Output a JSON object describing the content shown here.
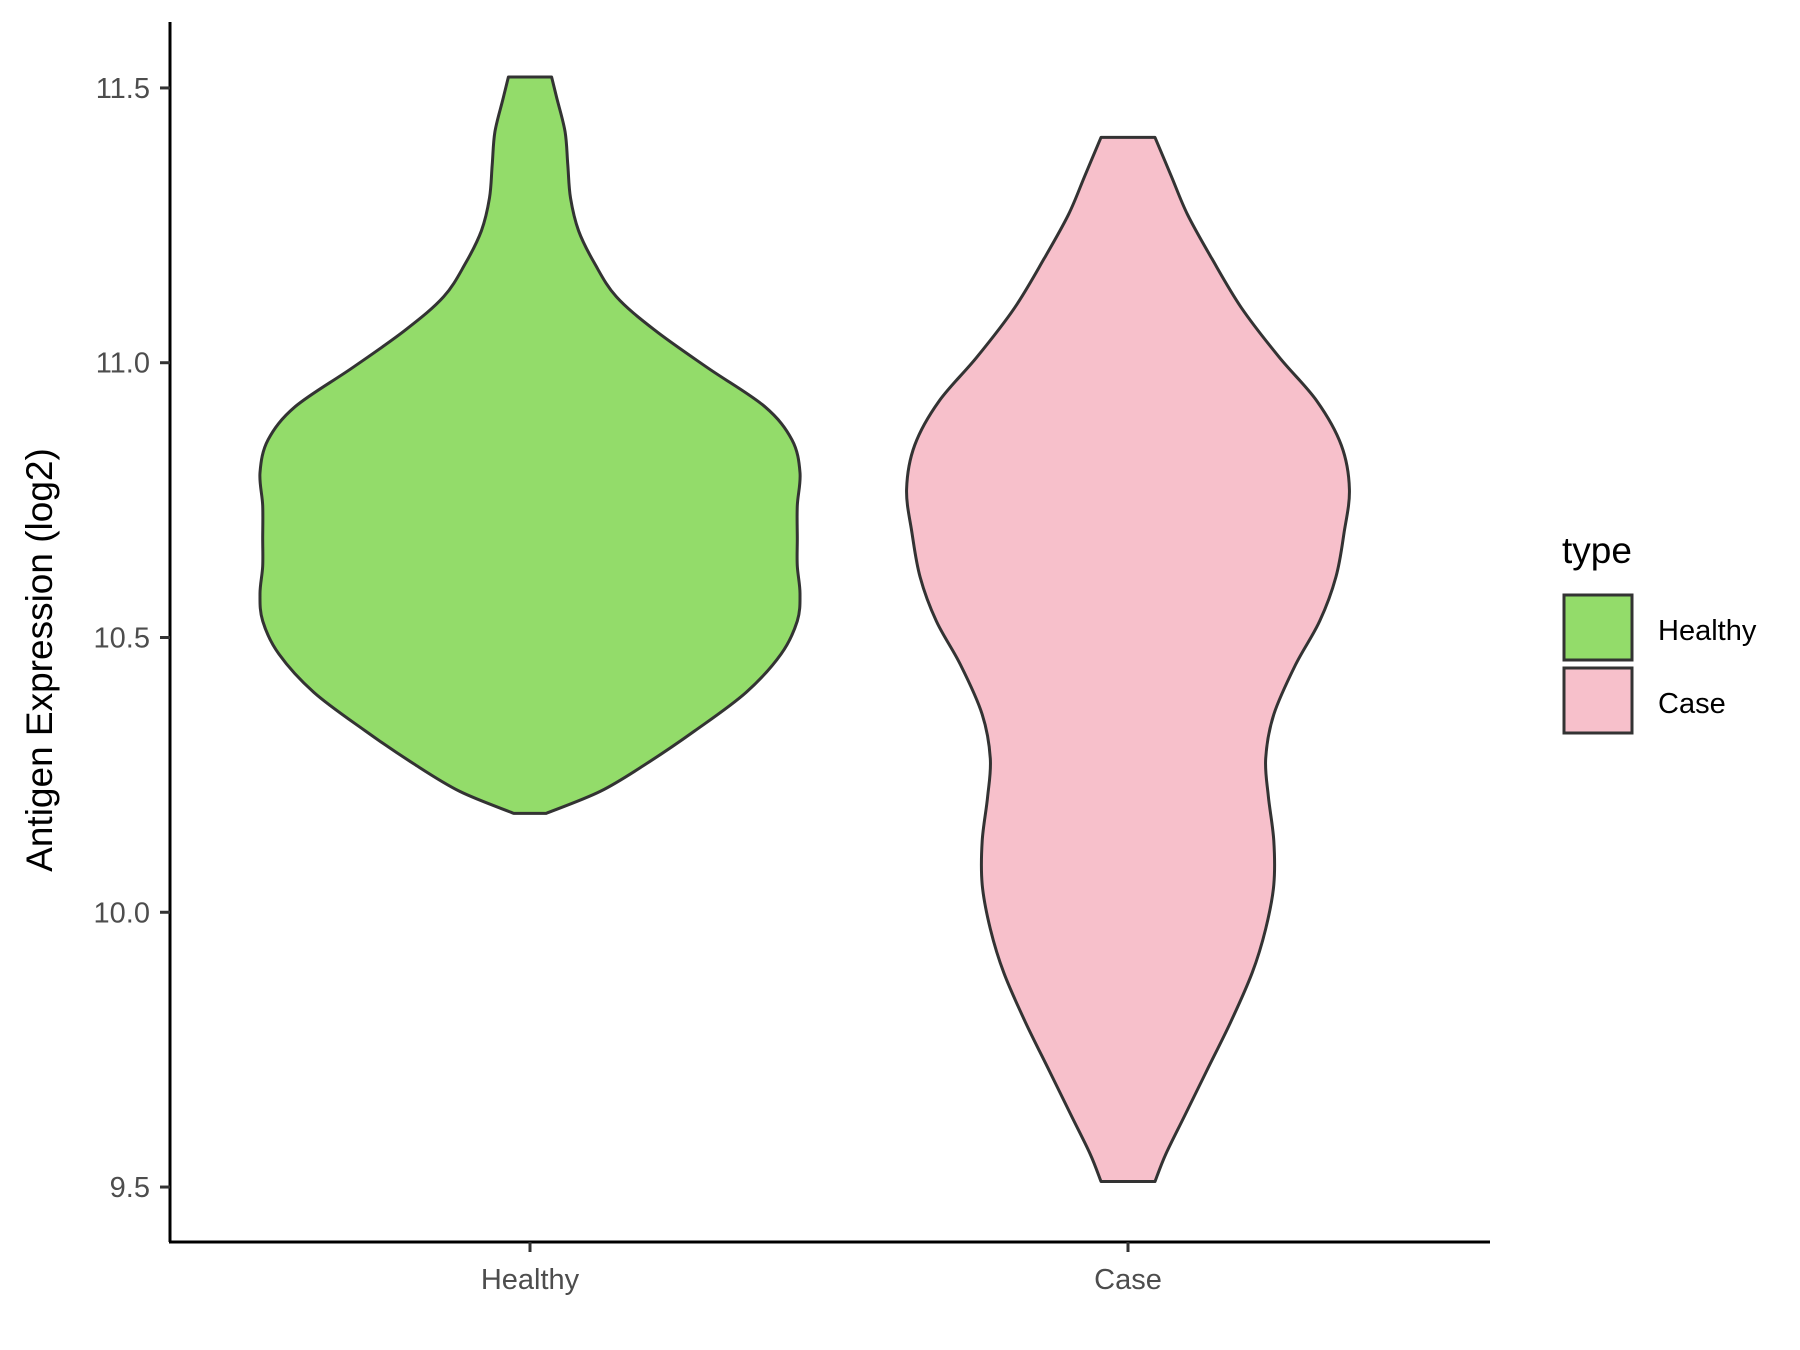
{
  "chart_data": {
    "type": "violin",
    "title": "",
    "xlabel": "",
    "ylabel": "Antigen Expression (log2)",
    "ylim": [
      9.4,
      11.62
    ],
    "yticks": [
      "9.5",
      "10.0",
      "10.5",
      "11.0",
      "11.5"
    ],
    "categories": [
      "Healthy",
      "Case"
    ],
    "legend": {
      "title": "type",
      "position": "right",
      "items": [
        {
          "label": "Healthy",
          "color": "#93DC6A"
        },
        {
          "label": "Case",
          "color": "#F7C0CB"
        }
      ]
    },
    "grid": false,
    "series": [
      {
        "name": "Healthy",
        "color": "#93DC6A",
        "min": 10.18,
        "max": 11.52,
        "profile": [
          [
            10.18,
            0.06
          ],
          [
            10.22,
            0.26
          ],
          [
            10.27,
            0.43
          ],
          [
            10.33,
            0.61
          ],
          [
            10.4,
            0.8
          ],
          [
            10.47,
            0.93
          ],
          [
            10.53,
            0.99
          ],
          [
            10.58,
            1.0
          ],
          [
            10.63,
            0.99
          ],
          [
            10.68,
            0.99
          ],
          [
            10.74,
            0.99
          ],
          [
            10.8,
            1.0
          ],
          [
            10.86,
            0.97
          ],
          [
            10.92,
            0.87
          ],
          [
            10.99,
            0.66
          ],
          [
            11.06,
            0.46
          ],
          [
            11.12,
            0.32
          ],
          [
            11.18,
            0.24
          ],
          [
            11.24,
            0.18
          ],
          [
            11.3,
            0.15
          ],
          [
            11.36,
            0.14
          ],
          [
            11.42,
            0.13
          ],
          [
            11.48,
            0.1
          ],
          [
            11.52,
            0.08
          ]
        ]
      },
      {
        "name": "Case",
        "color": "#F7C0CB",
        "min": 9.51,
        "max": 11.41,
        "profile": [
          [
            9.51,
            0.1
          ],
          [
            9.56,
            0.14
          ],
          [
            9.63,
            0.21
          ],
          [
            9.71,
            0.29
          ],
          [
            9.8,
            0.38
          ],
          [
            9.89,
            0.46
          ],
          [
            9.97,
            0.51
          ],
          [
            10.05,
            0.54
          ],
          [
            10.13,
            0.54
          ],
          [
            10.21,
            0.52
          ],
          [
            10.28,
            0.51
          ],
          [
            10.36,
            0.54
          ],
          [
            10.45,
            0.62
          ],
          [
            10.53,
            0.71
          ],
          [
            10.61,
            0.77
          ],
          [
            10.69,
            0.8
          ],
          [
            10.77,
            0.82
          ],
          [
            10.85,
            0.79
          ],
          [
            10.93,
            0.7
          ],
          [
            11.01,
            0.56
          ],
          [
            11.1,
            0.42
          ],
          [
            11.19,
            0.31
          ],
          [
            11.27,
            0.22
          ],
          [
            11.34,
            0.16
          ],
          [
            11.41,
            0.1
          ]
        ]
      }
    ]
  }
}
